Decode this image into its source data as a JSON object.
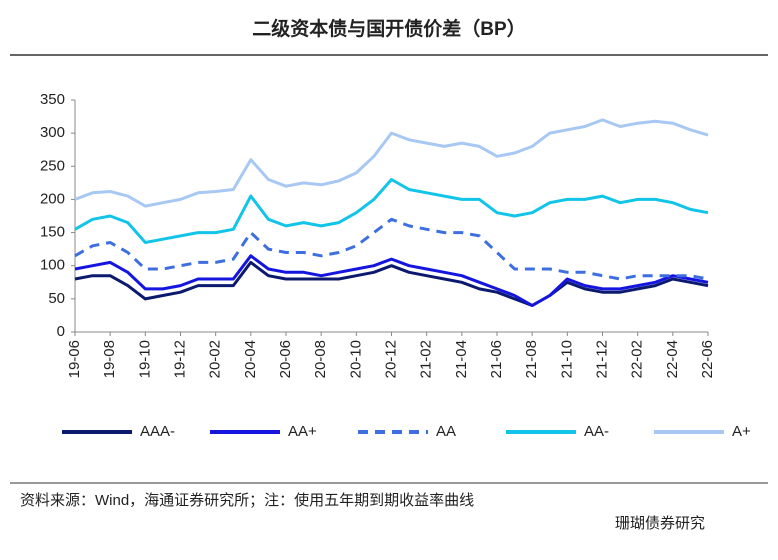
{
  "chart_data": {
    "type": "line",
    "title": "二级资本债与国开债价差（BP）",
    "categories": [
      "19-06",
      null,
      "19-08",
      null,
      "19-10",
      null,
      "19-12",
      null,
      "20-02",
      null,
      "20-04",
      null,
      "20-06",
      null,
      "20-08",
      null,
      "20-10",
      null,
      "20-12",
      null,
      "21-02",
      null,
      "21-04",
      null,
      "21-06",
      null,
      "21-08",
      null,
      "21-10",
      null,
      "21-12",
      null,
      "22-02",
      null,
      "22-04",
      null,
      "22-06"
    ],
    "series": [
      {
        "name": "AAA-",
        "color": "#0b1a6e",
        "values": [
          80,
          85,
          85,
          70,
          50,
          55,
          60,
          70,
          70,
          70,
          105,
          85,
          80,
          80,
          80,
          80,
          85,
          90,
          100,
          90,
          85,
          80,
          75,
          65,
          60,
          50,
          40,
          55,
          75,
          65,
          60,
          60,
          65,
          70,
          80,
          75,
          70
        ]
      },
      {
        "name": "AA+",
        "color": "#1515e0",
        "values": [
          95,
          100,
          105,
          90,
          65,
          65,
          70,
          80,
          80,
          80,
          115,
          95,
          90,
          90,
          85,
          90,
          95,
          100,
          110,
          100,
          95,
          90,
          85,
          75,
          65,
          55,
          40,
          55,
          80,
          70,
          65,
          65,
          70,
          75,
          85,
          80,
          75
        ]
      },
      {
        "name": "AA",
        "color": "#3d6fe0",
        "dashed": true,
        "values": [
          115,
          130,
          135,
          120,
          95,
          95,
          100,
          105,
          105,
          110,
          150,
          125,
          120,
          120,
          115,
          120,
          130,
          150,
          170,
          160,
          155,
          150,
          150,
          145,
          120,
          95,
          95,
          95,
          90,
          90,
          85,
          80,
          85,
          85,
          85,
          85,
          80
        ]
      },
      {
        "name": "AA-",
        "color": "#12c4e8",
        "values": [
          155,
          170,
          175,
          165,
          135,
          140,
          145,
          150,
          150,
          155,
          205,
          170,
          160,
          165,
          160,
          165,
          180,
          200,
          230,
          215,
          210,
          205,
          200,
          200,
          180,
          175,
          180,
          195,
          200,
          200,
          205,
          195,
          200,
          200,
          195,
          185,
          180
        ]
      },
      {
        "name": "A+",
        "color": "#a8c8f4",
        "values": [
          200,
          210,
          212,
          205,
          190,
          195,
          200,
          210,
          212,
          215,
          260,
          230,
          220,
          225,
          222,
          228,
          240,
          265,
          300,
          290,
          285,
          280,
          285,
          280,
          265,
          270,
          280,
          300,
          305,
          310,
          320,
          310,
          315,
          318,
          315,
          305,
          297
        ]
      }
    ],
    "ylim": [
      0,
      350
    ],
    "yticks": [
      0,
      50,
      100,
      150,
      200,
      250,
      300,
      350
    ],
    "source": "资料来源：Wind，海通证券研究所；注：使用五年期到期收益率曲线",
    "watermark": "珊瑚债券研究"
  }
}
